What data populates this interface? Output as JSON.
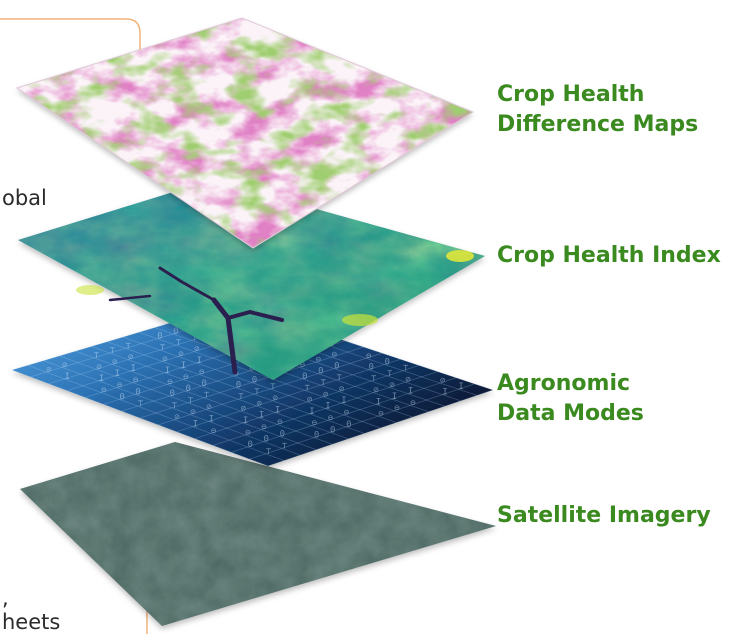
{
  "colors": {
    "accent_orange": "#f0b27a",
    "label_green": "#3a8a1f"
  },
  "side_text": {
    "fragment_global": "obal",
    "fragment_comma": ",",
    "fragment_sheets": "heets"
  },
  "layers": [
    {
      "name": "crop-health-difference-maps",
      "label_lines": [
        "Crop Health",
        "Difference Maps"
      ],
      "palette": [
        "#fdf6fb",
        "#e9a6d3",
        "#c0398f",
        "#a7cf6a",
        "#4f8f25"
      ]
    },
    {
      "name": "crop-health-index",
      "label_lines": [
        "Crop Health Index"
      ],
      "palette": [
        "#2a6a8e",
        "#1f9a8a",
        "#36b37a",
        "#a9d63a",
        "#3a2f6e"
      ]
    },
    {
      "name": "agronomic-data-modes",
      "label_lines": [
        "Agronomic",
        "Data Modes"
      ],
      "palette": [
        "#4d9ad8",
        "#1f5f9a",
        "#0f2f55",
        "#0c1a33"
      ]
    },
    {
      "name": "satellite-imagery",
      "label_lines": [
        "Satellite Imagery"
      ],
      "palette": [
        "#4a6560",
        "#5d7a73",
        "#3e5a57"
      ]
    }
  ]
}
